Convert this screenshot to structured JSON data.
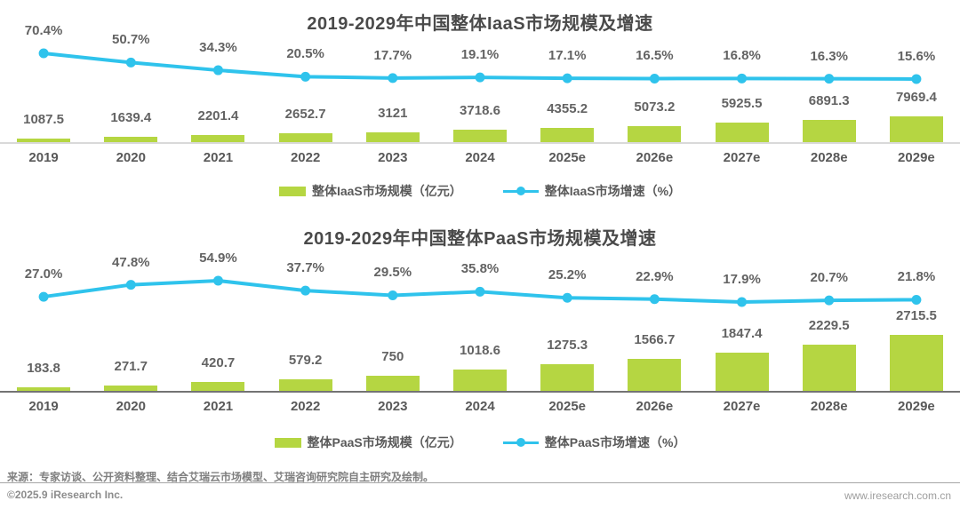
{
  "page": {
    "background": "#ffffff"
  },
  "colors": {
    "bar_green": "#b5d642",
    "line_cyan": "#2fc3ec",
    "title_gray": "#4a4a4a",
    "label_gray": "#636363"
  },
  "chart_data": [
    {
      "type": "bar",
      "subtype": "bar+line-combo",
      "title": "2019-2029年中国整体IaaS市场规模及增速",
      "categories": [
        "2019",
        "2020",
        "2021",
        "2022",
        "2023",
        "2024",
        "2025e",
        "2026e",
        "2027e",
        "2028e",
        "2029e"
      ],
      "series": [
        {
          "name": "整体IaaS市场规模（亿元）",
          "type": "bar",
          "unit": "亿元",
          "values": [
            1087.5,
            1639.4,
            2201.4,
            2652.7,
            3121,
            3718.6,
            4355.2,
            5073.2,
            5925.5,
            6891.3,
            7969.4
          ],
          "labels": [
            "1087.5",
            "1639.4",
            "2201.4",
            "2652.7",
            "3121",
            "3718.6",
            "4355.2",
            "5073.2",
            "5925.5",
            "6891.3",
            "7969.4"
          ]
        },
        {
          "name": "整体IaaS市场增速（%）",
          "type": "line",
          "unit": "%",
          "values": [
            70.4,
            50.7,
            34.3,
            20.5,
            17.7,
            19.1,
            17.1,
            16.5,
            16.8,
            16.3,
            15.6
          ],
          "labels": [
            "70.4%",
            "50.7%",
            "34.3%",
            "20.5%",
            "17.7%",
            "19.1%",
            "17.1%",
            "16.5%",
            "16.8%",
            "16.3%",
            "15.6%"
          ]
        }
      ],
      "legend_position": "bottom",
      "grid": false,
      "colors": {
        "bar": "#b5d642",
        "line": "#2fc3ec"
      }
    },
    {
      "type": "bar",
      "subtype": "bar+line-combo",
      "title": "2019-2029年中国整体PaaS市场规模及增速",
      "categories": [
        "2019",
        "2020",
        "2021",
        "2022",
        "2023",
        "2024",
        "2025e",
        "2026e",
        "2027e",
        "2028e",
        "2029e"
      ],
      "series": [
        {
          "name": "整体PaaS市场规模（亿元）",
          "type": "bar",
          "unit": "亿元",
          "values": [
            183.8,
            271.7,
            420.7,
            579.2,
            750,
            1018.6,
            1275.3,
            1566.7,
            1847.4,
            2229.5,
            2715.5
          ],
          "labels": [
            "183.8",
            "271.7",
            "420.7",
            "579.2",
            "750",
            "1018.6",
            "1275.3",
            "1566.7",
            "1847.4",
            "2229.5",
            "2715.5"
          ]
        },
        {
          "name": "整体PaaS市场增速（%）",
          "type": "line",
          "unit": "%",
          "values": [
            27.0,
            47.8,
            54.9,
            37.7,
            29.5,
            35.8,
            25.2,
            22.9,
            17.9,
            20.7,
            21.8
          ],
          "labels": [
            "27.0%",
            "47.8%",
            "54.9%",
            "37.7%",
            "29.5%",
            "35.8%",
            "25.2%",
            "22.9%",
            "17.9%",
            "20.7%",
            "21.8%"
          ]
        }
      ],
      "legend_position": "bottom",
      "grid": false,
      "colors": {
        "bar": "#b5d642",
        "line": "#2fc3ec"
      }
    }
  ],
  "footer": {
    "source": "来源：专家访谈、公开资料整理、结合艾瑞云市场模型、艾瑞咨询研究院自主研究及绘制。",
    "copyright": "©2025.9 iResearch Inc.",
    "website": "www.iresearch.com.cn"
  }
}
